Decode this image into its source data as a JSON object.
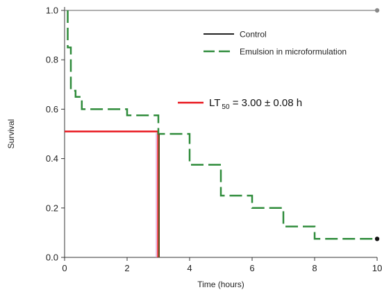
{
  "chart_data": {
    "type": "line",
    "xlabel": "Time (hours)",
    "ylabel": "Survival",
    "xlim": [
      0,
      10
    ],
    "ylim": [
      0,
      1.0
    ],
    "xticks": [
      "0",
      "2",
      "4",
      "6",
      "8",
      "10"
    ],
    "yticks": [
      "0.0",
      "0.2",
      "0.4",
      "0.6",
      "0.8",
      "1.0"
    ],
    "grid": false,
    "legend_position": "top-right",
    "series": [
      {
        "name": "Control",
        "style": "solid",
        "color": "#7f7f7f",
        "legend_color": "#000000",
        "x": [
          0,
          10
        ],
        "y": [
          1.0,
          1.0
        ],
        "end_marker": true
      },
      {
        "name": "Emulsion in microformulation",
        "style": "dashed",
        "color": "#2e8b3a",
        "x": [
          0.1,
          0.1,
          0.2,
          0.2,
          0.35,
          0.35,
          0.55,
          0.55,
          0.85,
          0.85,
          2.0,
          2.0,
          3.0,
          3.0,
          4.0,
          4.0,
          5.0,
          5.0,
          6.0,
          6.0,
          7.0,
          7.0,
          8.0,
          8.0,
          10.0
        ],
        "y": [
          1.0,
          0.85,
          0.85,
          0.675,
          0.675,
          0.65,
          0.65,
          0.6,
          0.6,
          0.6,
          0.6,
          0.575,
          0.575,
          0.5,
          0.5,
          0.375,
          0.375,
          0.25,
          0.25,
          0.2,
          0.2,
          0.125,
          0.125,
          0.075,
          0.075
        ],
        "end_marker": true
      }
    ],
    "annotation": {
      "label_main": "LT",
      "label_sub": "50",
      "label_rest": " = 3.00 ± 0.08 h",
      "color": "#e8141b",
      "lt50_x": 3.0,
      "lt50_y": 0.51
    }
  }
}
